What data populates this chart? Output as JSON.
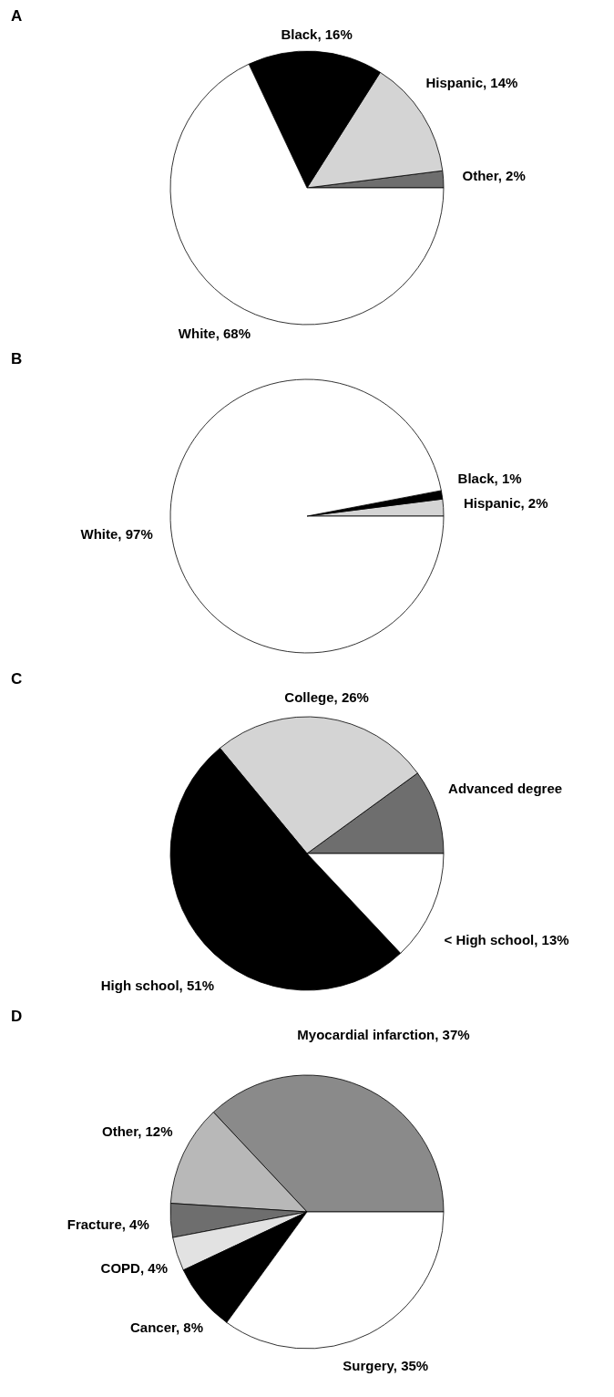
{
  "chart_data": [
    {
      "type": "pie",
      "title": "A",
      "categories": [
        "Other",
        "Hispanic",
        "Black",
        "White"
      ],
      "values": [
        2,
        14,
        16,
        68
      ],
      "value_labels": [
        "2%",
        "14%",
        "16%",
        "68%"
      ],
      "colors": [
        "#6e6e6e",
        "#d4d4d4",
        "#000000",
        "#ffffff"
      ]
    },
    {
      "type": "pie",
      "title": "B",
      "categories": [
        "Hispanic",
        "Black",
        "White"
      ],
      "values": [
        2,
        1,
        97
      ],
      "value_labels": [
        "2%",
        "1%",
        "97%"
      ],
      "colors": [
        "#d4d4d4",
        "#000000",
        "#ffffff"
      ]
    },
    {
      "type": "pie",
      "title": "C",
      "categories": [
        "Advanced degree",
        "College",
        "High school",
        "< High school"
      ],
      "values": [
        10,
        26,
        51,
        13
      ],
      "value_labels": [
        null,
        "26%",
        "51%",
        "13%"
      ],
      "colors": [
        "#6e6e6e",
        "#d4d4d4",
        "#000000",
        "#ffffff"
      ]
    },
    {
      "type": "pie",
      "title": "D",
      "categories": [
        "Myocardial infarction",
        "Other",
        "Fracture",
        "COPD",
        "Cancer",
        "Surgery"
      ],
      "values": [
        37,
        12,
        4,
        4,
        8,
        35
      ],
      "value_labels": [
        "37%",
        "12%",
        "4%",
        "4%",
        "8%",
        "35%"
      ],
      "colors": [
        "#8a8a8a",
        "#b8b8b8",
        "#6e6e6e",
        "#e2e2e2",
        "#000000",
        "#ffffff"
      ]
    }
  ]
}
